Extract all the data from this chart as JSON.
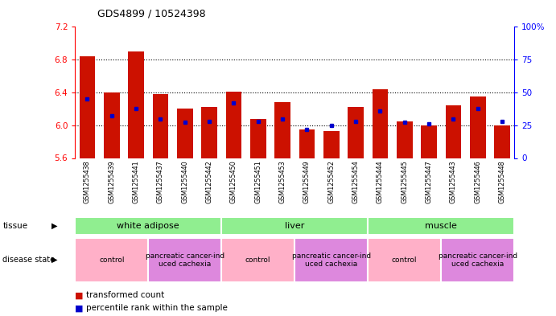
{
  "title": "GDS4899 / 10524398",
  "samples": [
    "GSM1255438",
    "GSM1255439",
    "GSM1255441",
    "GSM1255437",
    "GSM1255440",
    "GSM1255442",
    "GSM1255450",
    "GSM1255451",
    "GSM1255453",
    "GSM1255449",
    "GSM1255452",
    "GSM1255454",
    "GSM1255444",
    "GSM1255445",
    "GSM1255447",
    "GSM1255443",
    "GSM1255446",
    "GSM1255448"
  ],
  "red_values": [
    6.84,
    6.4,
    6.9,
    6.38,
    6.2,
    6.22,
    6.41,
    6.08,
    6.28,
    5.95,
    5.93,
    6.22,
    6.44,
    6.05,
    6.0,
    6.24,
    6.35,
    6.0
  ],
  "blue_pct": [
    45,
    32,
    38,
    30,
    27,
    28,
    42,
    28,
    30,
    22,
    25,
    28,
    36,
    27,
    26,
    30,
    38,
    28
  ],
  "ymin": 5.6,
  "ymax": 7.2,
  "yticks_left": [
    5.6,
    6.0,
    6.4,
    6.8,
    7.2
  ],
  "yticks_right": [
    0,
    25,
    50,
    75,
    100
  ],
  "tissue_groups": [
    {
      "label": "white adipose",
      "start": 0,
      "end": 6,
      "color": "#90ee90"
    },
    {
      "label": "liver",
      "start": 6,
      "end": 12,
      "color": "#90ee90"
    },
    {
      "label": "muscle",
      "start": 12,
      "end": 18,
      "color": "#90ee90"
    }
  ],
  "disease_groups": [
    {
      "label": "control",
      "start": 0,
      "end": 3,
      "color": "#ffb0c8"
    },
    {
      "label": "pancreatic cancer-ind\nuced cachexia",
      "start": 3,
      "end": 6,
      "color": "#dd88dd"
    },
    {
      "label": "control",
      "start": 6,
      "end": 9,
      "color": "#ffb0c8"
    },
    {
      "label": "pancreatic cancer-ind\nuced cachexia",
      "start": 9,
      "end": 12,
      "color": "#dd88dd"
    },
    {
      "label": "control",
      "start": 12,
      "end": 15,
      "color": "#ffb0c8"
    },
    {
      "label": "pancreatic cancer-ind\nuced cachexia",
      "start": 15,
      "end": 18,
      "color": "#dd88dd"
    }
  ],
  "bar_color": "#cc1100",
  "dot_color": "#0000cc",
  "bar_width": 0.65,
  "bg_color": "#cccccc",
  "plot_bg": "white"
}
